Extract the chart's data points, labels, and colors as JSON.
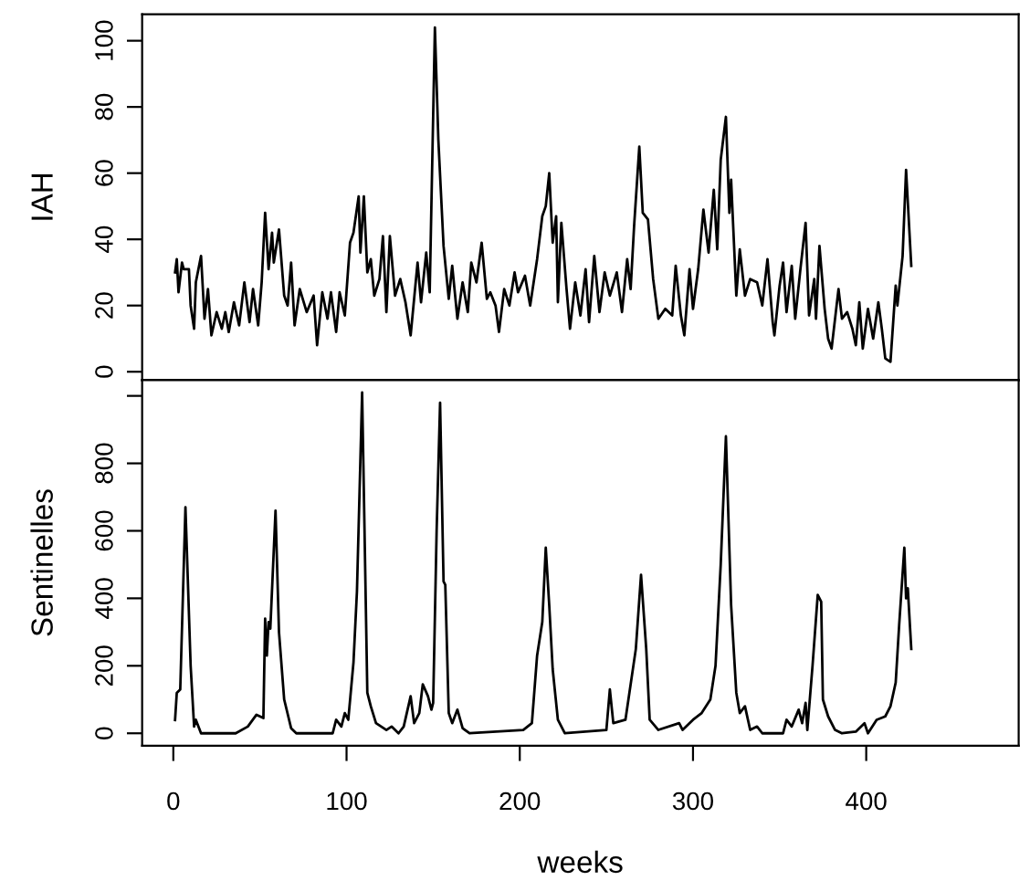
{
  "chart_data": [
    {
      "type": "line",
      "ylabel": "IAH",
      "xlim": [
        -18,
        488
      ],
      "ylim": [
        -2.5,
        108
      ],
      "yticks": [
        0,
        20,
        40,
        60,
        80,
        100
      ],
      "tick_labels": "y",
      "grid": false,
      "series": [
        {
          "color": "#000000",
          "x": [
            1,
            2,
            3,
            5,
            6,
            9,
            10,
            12,
            13,
            16,
            18,
            20,
            22,
            25,
            28,
            30,
            32,
            35,
            38,
            41,
            44,
            46,
            49,
            51,
            53,
            55,
            57,
            58,
            61,
            64,
            66,
            68,
            70,
            73,
            77,
            81,
            83,
            86,
            89,
            91,
            94,
            96,
            99,
            102,
            104,
            107,
            108,
            110,
            112,
            114,
            116,
            119,
            121,
            123,
            125,
            128,
            131,
            134,
            137,
            141,
            143,
            146,
            148,
            151,
            153,
            156,
            159,
            161,
            164,
            167,
            170,
            172,
            175,
            178,
            181,
            183,
            186,
            188,
            191,
            194,
            197,
            199,
            203,
            206,
            210,
            213,
            215,
            217,
            219,
            221,
            222,
            224,
            227,
            229,
            232,
            235,
            238,
            240,
            243,
            246,
            249,
            252,
            256,
            259,
            262,
            264,
            266,
            269,
            271,
            274,
            277,
            280,
            284,
            288,
            290,
            293,
            295,
            298,
            300,
            303,
            306,
            309,
            312,
            314,
            316,
            319,
            321,
            322,
            325,
            327,
            330,
            333,
            337,
            340,
            343,
            346,
            347,
            350,
            352,
            354,
            357,
            359,
            362,
            365,
            367,
            370,
            371,
            373,
            376,
            378,
            380,
            384,
            386,
            389,
            392,
            394,
            396,
            398,
            401,
            404,
            407,
            409,
            411,
            414,
            417,
            418,
            421,
            423,
            426
          ],
          "values": [
            30,
            34,
            24,
            33,
            31,
            31,
            20,
            13,
            27,
            35,
            16,
            25,
            11,
            18,
            13,
            18,
            12,
            21,
            14,
            27,
            15,
            25,
            14,
            27,
            48,
            31,
            42,
            33,
            43,
            23,
            20,
            33,
            14,
            25,
            18,
            23,
            8,
            24,
            16,
            24,
            12,
            24,
            17,
            39,
            42,
            53,
            36,
            53,
            30,
            34,
            23,
            28,
            41,
            18,
            41,
            23,
            28,
            21,
            11,
            33,
            21,
            36,
            24,
            104,
            70,
            38,
            22,
            32,
            16,
            27,
            18,
            33,
            27,
            39,
            22,
            24,
            20,
            12,
            25,
            20,
            30,
            24,
            29,
            20,
            34,
            47,
            50,
            60,
            39,
            47,
            21,
            45,
            25,
            13,
            27,
            17,
            31,
            15,
            35,
            18,
            30,
            23,
            30,
            18,
            34,
            25,
            44,
            68,
            48,
            46,
            28,
            16,
            19,
            17,
            32,
            17,
            11,
            31,
            19,
            31,
            49,
            36,
            55,
            37,
            64,
            77,
            48,
            58,
            23,
            37,
            23,
            28,
            27,
            20,
            34,
            15,
            11,
            26,
            33,
            18,
            32,
            16,
            31,
            45,
            17,
            28,
            16,
            38,
            19,
            10,
            7,
            25,
            16,
            18,
            13,
            8,
            21,
            7,
            19,
            10,
            21,
            13,
            4,
            3,
            26,
            20,
            35,
            61,
            32
          ]
        }
      ]
    },
    {
      "type": "line",
      "xlabel": "weeks",
      "ylabel": "Sentinelles",
      "xlim": [
        -18,
        488
      ],
      "xticks": [
        0,
        100,
        200,
        300,
        400
      ],
      "ylim": [
        -37,
        1047
      ],
      "yticks": [
        0,
        200,
        400,
        600,
        800,
        {
          "value": 1000,
          "label": null
        }
      ],
      "grid": false,
      "series": [
        {
          "color": "#000000",
          "x": [
            1,
            2,
            4,
            7,
            10,
            12,
            13,
            16,
            36,
            43,
            48,
            52,
            53,
            54,
            55,
            56,
            59,
            61,
            64,
            68,
            71,
            92,
            94,
            97,
            99,
            101,
            104,
            106,
            109,
            112,
            114,
            117,
            123,
            126,
            130,
            133,
            137,
            139,
            142,
            144,
            147,
            149,
            150,
            152,
            154,
            156,
            157,
            159,
            161,
            164,
            167,
            171,
            202,
            207,
            210,
            213,
            215,
            217,
            219,
            222,
            226,
            250,
            252,
            254,
            261,
            267,
            270,
            273,
            275,
            280,
            292,
            294,
            300,
            305,
            310,
            313,
            316,
            319,
            322,
            325,
            327,
            330,
            333,
            337,
            340,
            352,
            354,
            357,
            361,
            363,
            365,
            366,
            369,
            372,
            374,
            375,
            378,
            382,
            386,
            394,
            399,
            401,
            406,
            411,
            414,
            417,
            419,
            422,
            423,
            424,
            426
          ],
          "values": [
            39,
            120,
            130,
            670,
            200,
            20,
            40,
            0,
            0,
            20,
            55,
            45,
            340,
            230,
            330,
            310,
            660,
            300,
            100,
            15,
            0,
            0,
            40,
            20,
            60,
            40,
            210,
            420,
            1010,
            120,
            80,
            30,
            10,
            20,
            0,
            20,
            110,
            30,
            60,
            145,
            110,
            70,
            90,
            600,
            980,
            450,
            440,
            60,
            30,
            70,
            15,
            0,
            10,
            30,
            230,
            330,
            550,
            380,
            190,
            40,
            0,
            10,
            130,
            30,
            40,
            250,
            470,
            250,
            40,
            10,
            30,
            10,
            40,
            60,
            100,
            200,
            500,
            880,
            380,
            120,
            60,
            80,
            10,
            20,
            0,
            0,
            40,
            20,
            70,
            30,
            90,
            10,
            200,
            410,
            390,
            100,
            50,
            10,
            0,
            5,
            30,
            0,
            40,
            50,
            80,
            150,
            320,
            550,
            400,
            430,
            250
          ]
        }
      ]
    }
  ]
}
